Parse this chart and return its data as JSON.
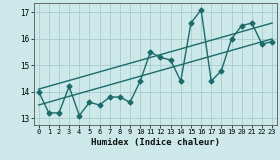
{
  "title": "",
  "xlabel": "Humidex (Indice chaleur)",
  "ylabel": "",
  "bg_color": "#cce8e8",
  "grid_color": "#aacccc",
  "line_color": "#1a6b6b",
  "xlim": [
    -0.5,
    23.5
  ],
  "ylim": [
    12.75,
    17.35
  ],
  "yticks": [
    13,
    14,
    15,
    16,
    17
  ],
  "xticks": [
    0,
    1,
    2,
    3,
    4,
    5,
    6,
    7,
    8,
    9,
    10,
    11,
    12,
    13,
    14,
    15,
    16,
    17,
    18,
    19,
    20,
    21,
    22,
    23
  ],
  "series1_x": [
    0,
    1,
    2,
    3,
    4,
    5,
    6,
    7,
    8,
    9,
    10,
    11,
    12,
    13,
    14,
    15,
    16,
    17,
    18,
    19,
    20,
    21,
    22,
    23
  ],
  "series1_y": [
    14.0,
    13.2,
    13.2,
    14.2,
    13.1,
    13.6,
    13.5,
    13.8,
    13.8,
    13.6,
    14.4,
    15.5,
    15.3,
    15.2,
    14.4,
    16.6,
    17.1,
    14.4,
    14.8,
    16.0,
    16.5,
    16.6,
    15.8,
    15.9
  ],
  "series2_x": [
    0,
    23
  ],
  "series2_y": [
    13.5,
    16.0
  ],
  "series3_x": [
    0,
    23
  ],
  "series3_y": [
    14.1,
    16.6
  ],
  "marker": "D",
  "markersize": 2.5,
  "linewidth": 1.0
}
